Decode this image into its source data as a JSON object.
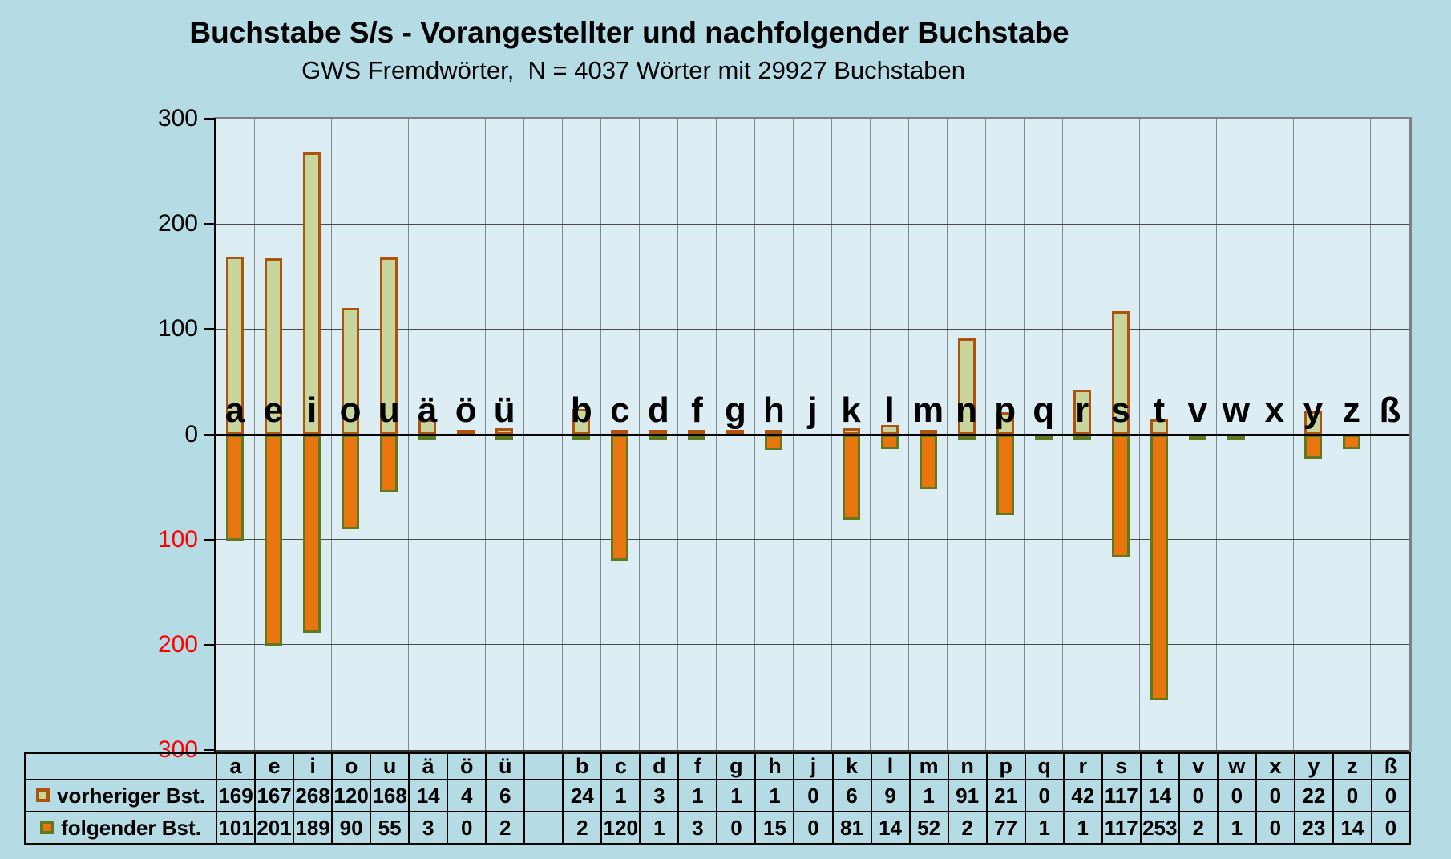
{
  "header": {
    "title": "Buchstabe S/s - Vorangestellter und nachfolgender Buchstabe",
    "subtitle": "GWS Fremdwörter,  N = 4037 Wörter mit 29927 Buchstaben"
  },
  "chart_data": {
    "type": "bar",
    "orientation": "diverging-vertical",
    "title": "Buchstabe S/s - Vorangestellter und nachfolgender Buchstabe",
    "subtitle": "GWS Fremdwörter,  N = 4037 Wörter mit 29927 Buchstaben",
    "categories": [
      "a",
      "e",
      "i",
      "o",
      "u",
      "ä",
      "ö",
      "ü",
      "",
      "b",
      "c",
      "d",
      "f",
      "g",
      "h",
      "j",
      "k",
      "l",
      "m",
      "n",
      "p",
      "q",
      "r",
      "s",
      "t",
      "v",
      "w",
      "x",
      "y",
      "z",
      "ß"
    ],
    "series": [
      {
        "name": "vorheriger Bst.",
        "direction": "up",
        "fill": "#c8d69d",
        "border": "#ae530e",
        "values": [
          169,
          167,
          268,
          120,
          168,
          14,
          4,
          6,
          null,
          24,
          1,
          3,
          1,
          1,
          1,
          0,
          6,
          9,
          1,
          91,
          21,
          0,
          42,
          117,
          14,
          0,
          0,
          0,
          22,
          0,
          0
        ]
      },
      {
        "name": "folgender Bst.",
        "direction": "down",
        "fill": "#e8750e",
        "border": "#60791f",
        "values": [
          101,
          201,
          189,
          90,
          55,
          3,
          0,
          2,
          null,
          2,
          120,
          1,
          3,
          0,
          15,
          0,
          81,
          14,
          52,
          2,
          77,
          1,
          1,
          117,
          253,
          2,
          1,
          0,
          23,
          14,
          0
        ]
      }
    ],
    "y_axis": {
      "max": 300,
      "min": -300,
      "step": 100,
      "tick_labels_top_to_bottom": [
        "300",
        "200",
        "100",
        "0",
        "100",
        "200",
        "300"
      ],
      "positive_label_color": "#000000",
      "negative_label_color": "#ff0000"
    },
    "grid": true,
    "legend_position": "bottom-table",
    "colors": {
      "page_background": "#b5dbe5",
      "plot_background": "#dcedf3",
      "vertical_grid": "#7f8a90",
      "horizontal_grid": "#4a4a4a",
      "zero_line": "#000000",
      "plot_border": "#808080"
    }
  }
}
